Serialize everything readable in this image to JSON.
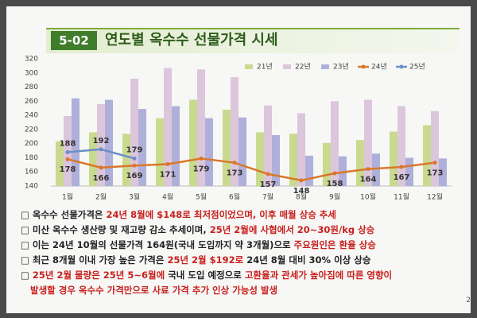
{
  "slide": {
    "number": "5-02",
    "title": "연도별 옥수수 선물가격 시세",
    "page": "2"
  },
  "chart_data": {
    "type": "bar-line",
    "categories": [
      "1월",
      "2월",
      "3월",
      "4월",
      "5월",
      "6월",
      "7월",
      "8월",
      "9월",
      "10월",
      "11월",
      "12월"
    ],
    "ylim": [
      140,
      320
    ],
    "yticks": [
      140,
      160,
      180,
      200,
      220,
      240,
      260,
      280,
      300,
      320
    ],
    "grid": false,
    "series": [
      {
        "name": "21년",
        "kind": "bar",
        "color": "#c9da8e",
        "values": [
          203,
          216,
          214,
          236,
          262,
          248,
          216,
          214,
          201,
          205,
          217,
          226
        ]
      },
      {
        "name": "22년",
        "kind": "bar",
        "color": "#dcc6dc",
        "values": [
          239,
          256,
          292,
          307,
          305,
          294,
          254,
          243,
          260,
          262,
          253,
          246
        ]
      },
      {
        "name": "23년",
        "kind": "bar",
        "color": "#aeb0da",
        "values": [
          264,
          262,
          249,
          253,
          236,
          237,
          212,
          183,
          182,
          186,
          180,
          179
        ]
      },
      {
        "name": "24년",
        "kind": "line",
        "color": "#d9782a",
        "labels": "below",
        "values": [
          178,
          166,
          169,
          171,
          179,
          173,
          157,
          148,
          158,
          164,
          167,
          173
        ]
      },
      {
        "name": "25년",
        "kind": "line",
        "color": "#6b8fc4",
        "labels": "above",
        "values": [
          188,
          192,
          179,
          null,
          null,
          null,
          null,
          null,
          null,
          null,
          null,
          null
        ]
      }
    ]
  },
  "notes": [
    [
      {
        "text": "□ 옥수수 선물가격은 ",
        "color": "#222"
      },
      {
        "text": "24년 8월에 $148로 최저점이었으며, 이후 매월 상승 추세",
        "color": "#c8201e"
      }
    ],
    [
      {
        "text": "□ 미산 옥수수 생산량 및 재고량 감소 추세이며, ",
        "color": "#222"
      },
      {
        "text": "25년 2월에 사협에서 20~30원/kg 상승",
        "color": "#c8201e"
      }
    ],
    [
      {
        "text": "□ 이는 24년 10월의 선물가격 164원(국내 도입까지 약 3개월)으로 ",
        "color": "#222"
      },
      {
        "text": "주요원인은 환율 상승",
        "color": "#c8201e"
      }
    ],
    [
      {
        "text": "□ 최근 8개월 이내 가장 높은 가격은 ",
        "color": "#222"
      },
      {
        "text": "25년 2월 $192로",
        "color": "#c8201e"
      },
      {
        "text": " 24년 8월 대비 30% 이상 상승",
        "color": "#222"
      }
    ],
    [
      {
        "text": "□ ",
        "color": "#222"
      },
      {
        "text": "25년 2월 물량은 25년 5~6월에",
        "color": "#c8201e"
      },
      {
        "text": " 국내 도입 예정으로 ",
        "color": "#222"
      },
      {
        "text": "고환율과 관세가 높아짐에 따른 영향이",
        "color": "#c8201e"
      }
    ],
    [
      {
        "text": "발생할 경우 옥수수 가격만으로 사료 가격 추가 인상 가능성 발생",
        "color": "#c8201e"
      }
    ]
  ]
}
